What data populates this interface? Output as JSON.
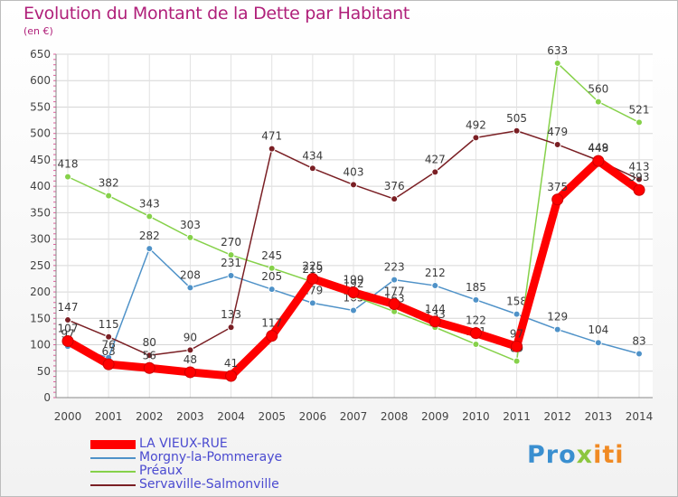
{
  "chart_data": {
    "type": "line",
    "title": "Evolution du Montant de la Dette par Habitant",
    "subtitle": "(en €)",
    "x": [
      "2000",
      "2001",
      "2002",
      "2003",
      "2004",
      "2005",
      "2006",
      "2007",
      "2008",
      "2009",
      "2010",
      "2011",
      "2012",
      "2013",
      "2014"
    ],
    "ylim": [
      0,
      650
    ],
    "yticks": [
      0,
      50,
      100,
      150,
      200,
      250,
      300,
      350,
      400,
      450,
      500,
      550,
      600,
      650
    ],
    "grid": true,
    "legend_position": "bottom-left",
    "series": [
      {
        "name": "Morgny-la-Pommeraye",
        "color": "#4f92c8",
        "values": [
          97,
          76,
          282,
          208,
          231,
          205,
          179,
          165,
          223,
          212,
          185,
          158,
          129,
          104,
          83
        ],
        "labels": [
          "97",
          "76",
          "282",
          "208",
          "231",
          "205",
          "179",
          "165",
          "223",
          "212",
          "185",
          "158",
          "129",
          "104",
          "83"
        ]
      },
      {
        "name": "Préaux",
        "color": "#86d14a",
        "values": [
          418,
          382,
          343,
          303,
          270,
          245,
          219,
          192,
          163,
          133,
          101,
          69,
          633,
          560,
          521
        ],
        "labels": [
          "418",
          "382",
          "343",
          "303",
          "270",
          "245",
          "219",
          "192",
          "163",
          "133",
          "101",
          "69",
          "633",
          "560",
          "521"
        ]
      },
      {
        "name": "Servaville-Salmonville",
        "color": "#7a1f24",
        "values": [
          147,
          115,
          80,
          90,
          133,
          471,
          434,
          403,
          376,
          427,
          492,
          505,
          479,
          449,
          413
        ],
        "labels": [
          "147",
          "115",
          "80",
          "90",
          "133",
          "471",
          "434",
          "403",
          "376",
          "427",
          "492",
          "505",
          "479",
          "449",
          "413"
        ]
      },
      {
        "name": "LA VIEUX-RUE",
        "color": "#ff0000",
        "values": [
          107,
          63,
          56,
          48,
          41,
          117,
          225,
          199,
          177,
          144,
          122,
          97,
          375,
          448,
          393
        ],
        "labels": [
          "107",
          "63",
          "56",
          "48",
          "41",
          "117",
          "225",
          "199",
          "177",
          "144",
          "122",
          "97",
          "375",
          "448",
          "393"
        ]
      }
    ]
  },
  "legend": [
    {
      "name": "LA VIEUX-RUE",
      "color": "#ff0000",
      "width": 10
    },
    {
      "name": "Morgny-la-Pommeraye",
      "color": "#4f92c8",
      "width": 2
    },
    {
      "name": "Préaux",
      "color": "#86d14a",
      "width": 2
    },
    {
      "name": "Servaville-Salmonville",
      "color": "#7a1f24",
      "width": 2
    }
  ],
  "brand": {
    "p1": "Pro",
    "p2": "x",
    "p3": "iti"
  }
}
